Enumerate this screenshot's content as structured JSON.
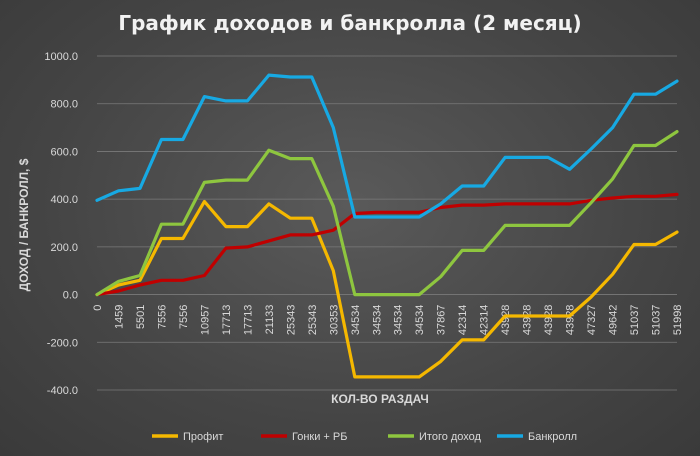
{
  "chart_data": {
    "type": "line",
    "title": "График доходов и банкролла (2 месяц)",
    "xlabel": "КОЛ-ВО РАЗДАЧ",
    "ylabel": "ДОХОД / БАНКРОЛЛ, $",
    "ylim": [
      -400,
      1000
    ],
    "y_ticks": [
      "-400.0",
      "-200.0",
      "0.0",
      "200.0",
      "400.0",
      "600.0",
      "800.0",
      "1000.0"
    ],
    "y_tick_values": [
      -400,
      -200,
      0,
      200,
      400,
      600,
      800,
      1000
    ],
    "grid": true,
    "legend_position": "bottom",
    "categories": [
      "0",
      "1459",
      "5501",
      "7556",
      "7556",
      "10957",
      "17713",
      "17713",
      "21133",
      "25343",
      "25343",
      "30353",
      "34534",
      "34534",
      "34534",
      "34534",
      "37867",
      "42314",
      "42314",
      "43928",
      "43928",
      "43928",
      "43928",
      "47327",
      "49642",
      "51037",
      "51037",
      "51998"
    ],
    "series": [
      {
        "name": "Профит",
        "color": "#f5b800",
        "values": [
          0,
          40,
          60,
          235,
          235,
          390,
          285,
          285,
          380,
          320,
          320,
          100,
          -345,
          -345,
          -345,
          -345,
          -280,
          -190,
          -190,
          -90,
          -90,
          -90,
          -90,
          -10,
          85,
          210,
          210,
          262
        ]
      },
      {
        "name": "Гонки + РБ",
        "color": "#c00000",
        "values": [
          0,
          15,
          40,
          60,
          60,
          80,
          195,
          200,
          225,
          250,
          250,
          270,
          340,
          345,
          345,
          345,
          365,
          375,
          375,
          380,
          380,
          380,
          380,
          395,
          405,
          412,
          412,
          420
        ]
      },
      {
        "name": "Итого доход",
        "color": "#8ec63f",
        "values": [
          0,
          55,
          80,
          295,
          295,
          470,
          480,
          480,
          605,
          570,
          570,
          370,
          0,
          0,
          0,
          0,
          75,
          185,
          185,
          290,
          290,
          290,
          290,
          385,
          485,
          625,
          625,
          683
        ]
      },
      {
        "name": "Банкролл",
        "color": "#17a9e3",
        "values": [
          395,
          435,
          445,
          650,
          650,
          830,
          812,
          812,
          920,
          912,
          912,
          700,
          325,
          325,
          325,
          325,
          380,
          455,
          455,
          575,
          575,
          575,
          525,
          610,
          700,
          840,
          840,
          895
        ]
      }
    ]
  }
}
